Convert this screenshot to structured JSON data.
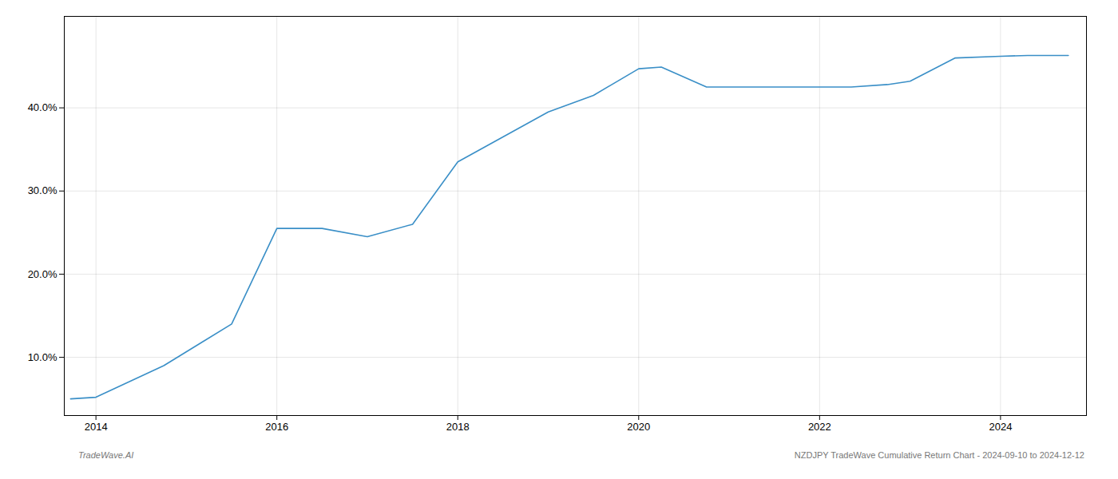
{
  "chart_data": {
    "type": "line",
    "x": [
      2013.72,
      2014.0,
      2014.75,
      2015.5,
      2016.0,
      2016.5,
      2017.0,
      2017.5,
      2018.0,
      2018.5,
      2019.0,
      2019.5,
      2020.0,
      2020.25,
      2020.75,
      2021.0,
      2021.5,
      2022.0,
      2022.35,
      2022.75,
      2023.0,
      2023.5,
      2024.0,
      2024.3,
      2024.75
    ],
    "values": [
      5.0,
      5.2,
      9.0,
      14.0,
      25.5,
      25.5,
      24.5,
      26.0,
      33.5,
      36.5,
      39.5,
      41.5,
      44.7,
      44.9,
      42.5,
      42.5,
      42.5,
      42.5,
      42.5,
      42.8,
      43.2,
      46.0,
      46.2,
      46.3,
      46.3
    ],
    "color": "#3a8fc7",
    "xlim": [
      2013.65,
      2024.95
    ],
    "xticks": [
      2014,
      2016,
      2018,
      2020,
      2022,
      2024
    ],
    "ylim": [
      3.0,
      51.0
    ],
    "yticks": [
      {
        "value": 10.0,
        "label": "10.0%"
      },
      {
        "value": 20.0,
        "label": "20.0%"
      },
      {
        "value": 30.0,
        "label": "30.0%"
      },
      {
        "value": 40.0,
        "label": "40.0%"
      }
    ],
    "grid": true,
    "annotations": [
      "TradeWave.AI",
      "NZDJPY TradeWave Cumulative Return Chart - 2024-09-10 to 2024-12-12"
    ]
  }
}
